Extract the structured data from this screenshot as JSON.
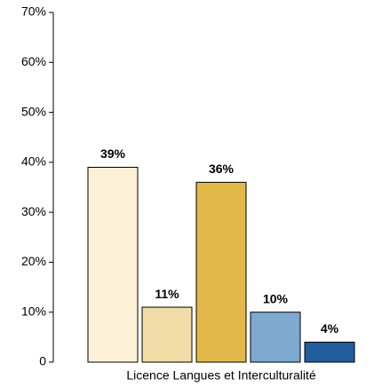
{
  "chart_data": {
    "type": "bar",
    "categories": [
      "Licence Langues et Interculturalité"
    ],
    "series": [
      {
        "color": "#fcf0d6",
        "values": [
          39
        ],
        "value_labels": [
          "39%"
        ]
      },
      {
        "color": "#f1dca5",
        "values": [
          11
        ],
        "value_labels": [
          "11%"
        ]
      },
      {
        "color": "#e3b84b",
        "values": [
          36
        ],
        "value_labels": [
          "36%"
        ]
      },
      {
        "color": "#7ea9d0",
        "values": [
          10
        ],
        "value_labels": [
          "10%"
        ]
      },
      {
        "color": "#1f5e9b",
        "values": [
          4
        ],
        "value_labels": [
          "4%"
        ]
      }
    ],
    "ylim": [
      0,
      70
    ],
    "yticks": [
      0,
      {
        "value": 10,
        "label": "10%"
      },
      {
        "value": 20,
        "label": "20%"
      },
      {
        "value": 30,
        "label": "30%"
      },
      {
        "value": 40,
        "label": "40%"
      },
      {
        "value": 50,
        "label": "50%"
      },
      {
        "value": 60,
        "label": "60%"
      },
      {
        "value": 70,
        "label": "70%"
      }
    ],
    "grid": false
  }
}
